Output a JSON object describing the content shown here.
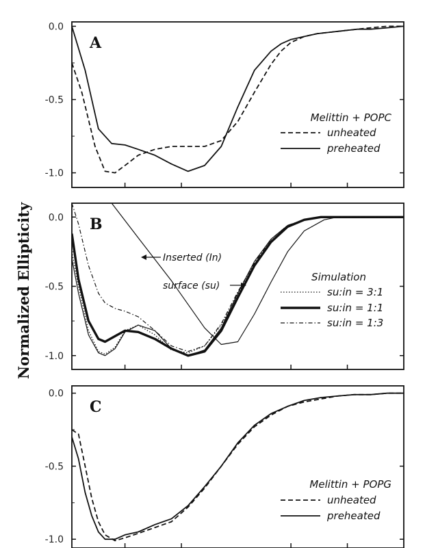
{
  "figure": {
    "ylabel": "Normalized Ellipticity"
  },
  "chart_data": [
    {
      "type": "line",
      "panel_label": "A",
      "yticks": [
        "0.0",
        "-0.5",
        "-1.0"
      ],
      "ylim": [
        -1.1,
        0.03
      ],
      "xlim": [
        0,
        1
      ],
      "legend_title": "Melittin + POPC",
      "legend": "right",
      "series": [
        {
          "name": "unheated",
          "style": "dashed",
          "width": 1.8,
          "x": [
            0,
            0.03,
            0.07,
            0.1,
            0.13,
            0.16,
            0.2,
            0.25,
            0.3,
            0.35,
            0.4,
            0.45,
            0.5,
            0.55,
            0.6,
            0.63,
            0.66,
            0.7,
            0.74,
            0.78,
            0.82,
            0.86,
            0.9,
            0.95,
            1
          ],
          "y": [
            -0.25,
            -0.45,
            -0.82,
            -0.99,
            -1.0,
            -0.95,
            -0.88,
            -0.84,
            -0.82,
            -0.82,
            -0.82,
            -0.78,
            -0.65,
            -0.45,
            -0.26,
            -0.17,
            -0.11,
            -0.07,
            -0.05,
            -0.04,
            -0.03,
            -0.02,
            -0.01,
            0.0,
            0.0
          ]
        },
        {
          "name": "preheated",
          "style": "solid",
          "width": 1.8,
          "x": [
            0,
            0.04,
            0.08,
            0.12,
            0.16,
            0.2,
            0.25,
            0.3,
            0.35,
            0.4,
            0.45,
            0.5,
            0.55,
            0.6,
            0.63,
            0.66,
            0.7,
            0.74,
            0.78,
            0.82,
            0.86,
            0.9,
            0.95,
            1
          ],
          "y": [
            0.0,
            -0.3,
            -0.7,
            -0.8,
            -0.81,
            -0.84,
            -0.88,
            -0.94,
            -0.99,
            -0.95,
            -0.82,
            -0.55,
            -0.3,
            -0.17,
            -0.12,
            -0.09,
            -0.07,
            -0.05,
            -0.04,
            -0.03,
            -0.02,
            -0.02,
            -0.01,
            0.0
          ]
        }
      ]
    },
    {
      "type": "line",
      "panel_label": "B",
      "yticks": [
        "0.0",
        "-0.5",
        "-1.0"
      ],
      "ylim": [
        -1.1,
        0.1
      ],
      "xlim": [
        0,
        1
      ],
      "legend_title": "Simulation",
      "legend": "right",
      "annotations": [
        "Inserted (In)",
        "surface (su)"
      ],
      "series": [
        {
          "name": "Inserted (In)",
          "style": "solid",
          "width": 1.2,
          "legend": false,
          "x": [
            0.12,
            0.2,
            0.3,
            0.4,
            0.45,
            0.5,
            0.55,
            0.6,
            0.65,
            0.7,
            0.76,
            0.8,
            0.9,
            1
          ],
          "y": [
            0.1,
            -0.15,
            -0.46,
            -0.8,
            -0.92,
            -0.9,
            -0.7,
            -0.47,
            -0.25,
            -0.1,
            -0.02,
            0.0,
            0.0,
            0.0
          ]
        },
        {
          "name": "surface (su)",
          "style": "solid",
          "width": 1.2,
          "legend": false,
          "x": [
            0,
            0.02,
            0.05,
            0.08,
            0.1,
            0.13,
            0.16,
            0.2,
            0.25,
            0.3,
            0.35,
            0.4,
            0.45,
            0.5,
            0.55,
            0.6,
            0.65,
            0.7,
            0.75,
            0.8,
            0.85,
            0.9,
            1
          ],
          "y": [
            -0.3,
            -0.55,
            -0.85,
            -0.98,
            -1.0,
            -0.95,
            -0.83,
            -0.78,
            -0.82,
            -0.95,
            -1.0,
            -0.96,
            -0.8,
            -0.55,
            -0.32,
            -0.16,
            -0.06,
            -0.02,
            0.0,
            0.0,
            0.0,
            0.0,
            0.0
          ]
        },
        {
          "name": "su:in = 3:1",
          "style": "dotted",
          "width": 1.3,
          "x": [
            0,
            0.02,
            0.05,
            0.08,
            0.1,
            0.13,
            0.16,
            0.2,
            0.25,
            0.3,
            0.35,
            0.4,
            0.45,
            0.5,
            0.55,
            0.6,
            0.65,
            0.7,
            0.75,
            0.8,
            0.85,
            1
          ],
          "y": [
            -0.25,
            -0.5,
            -0.82,
            -0.97,
            -0.99,
            -0.94,
            -0.82,
            -0.78,
            -0.85,
            -0.96,
            -0.98,
            -0.93,
            -0.78,
            -0.56,
            -0.34,
            -0.17,
            -0.07,
            -0.02,
            0.0,
            0.0,
            0.0,
            0.0
          ]
        },
        {
          "name": "su:in = 1:1",
          "style": "solid",
          "width": 3.4,
          "x": [
            0,
            0.02,
            0.05,
            0.08,
            0.1,
            0.13,
            0.16,
            0.2,
            0.25,
            0.3,
            0.35,
            0.4,
            0.45,
            0.5,
            0.55,
            0.6,
            0.65,
            0.7,
            0.75,
            0.8,
            1
          ],
          "y": [
            -0.12,
            -0.45,
            -0.75,
            -0.88,
            -0.9,
            -0.86,
            -0.82,
            -0.83,
            -0.88,
            -0.95,
            -1.0,
            -0.97,
            -0.82,
            -0.58,
            -0.35,
            -0.18,
            -0.07,
            -0.02,
            0.0,
            0.0,
            0.0
          ]
        },
        {
          "name": "su:in = 1:3",
          "style": "dashdot",
          "width": 1.2,
          "x": [
            0,
            0.02,
            0.05,
            0.08,
            0.1,
            0.13,
            0.16,
            0.2,
            0.25,
            0.3,
            0.35,
            0.4,
            0.45,
            0.5,
            0.55,
            0.6,
            0.65,
            0.7,
            0.75,
            0.8,
            1
          ],
          "y": [
            0.1,
            -0.05,
            -0.35,
            -0.55,
            -0.62,
            -0.66,
            -0.68,
            -0.72,
            -0.82,
            -0.93,
            -0.97,
            -0.93,
            -0.77,
            -0.54,
            -0.33,
            -0.16,
            -0.06,
            -0.02,
            0.0,
            0.0,
            0.0
          ]
        }
      ]
    },
    {
      "type": "line",
      "panel_label": "C",
      "yticks": [
        "0.0",
        "-0.5",
        "-1.0"
      ],
      "ylim": [
        -1.06,
        0.05
      ],
      "xlim": [
        0,
        1
      ],
      "legend_title": "Melittin + POPG",
      "legend": "right",
      "series": [
        {
          "name": "unheated",
          "style": "dashed",
          "width": 1.8,
          "x": [
            0,
            0.02,
            0.04,
            0.06,
            0.08,
            0.1,
            0.13,
            0.16,
            0.2,
            0.25,
            0.3,
            0.35,
            0.4,
            0.45,
            0.5,
            0.55,
            0.6,
            0.65,
            0.7,
            0.75,
            0.8,
            0.85,
            0.9,
            0.95,
            1
          ],
          "y": [
            -0.25,
            -0.28,
            -0.5,
            -0.72,
            -0.88,
            -0.97,
            -1.01,
            -0.99,
            -0.96,
            -0.92,
            -0.88,
            -0.78,
            -0.65,
            -0.5,
            -0.35,
            -0.23,
            -0.15,
            -0.09,
            -0.06,
            -0.04,
            -0.02,
            -0.01,
            -0.01,
            0.0,
            0.0
          ]
        },
        {
          "name": "preheated",
          "style": "solid",
          "width": 1.8,
          "x": [
            0,
            0.02,
            0.04,
            0.06,
            0.08,
            0.1,
            0.13,
            0.16,
            0.2,
            0.25,
            0.3,
            0.35,
            0.4,
            0.45,
            0.5,
            0.55,
            0.6,
            0.65,
            0.7,
            0.75,
            0.8,
            0.85,
            0.9,
            0.95,
            1
          ],
          "y": [
            -0.3,
            -0.45,
            -0.68,
            -0.84,
            -0.95,
            -1.0,
            -1.0,
            -0.97,
            -0.95,
            -0.9,
            -0.86,
            -0.77,
            -0.64,
            -0.5,
            -0.34,
            -0.22,
            -0.14,
            -0.09,
            -0.05,
            -0.03,
            -0.02,
            -0.01,
            -0.01,
            0.0,
            0.0
          ]
        }
      ]
    }
  ]
}
